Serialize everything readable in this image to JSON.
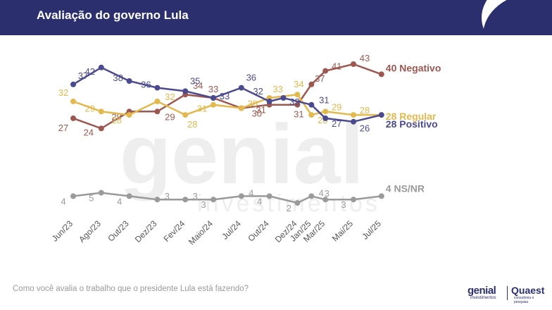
{
  "header": {
    "title": "Avaliação do governo Lula"
  },
  "footnote": "Como você avalia o trabalho que o presidente Lula está fazendo?",
  "logos": {
    "genial": "genial",
    "genial_sub": "investimentos",
    "quaest": "Quaest",
    "quaest_sub": "consultoria e pesquisa"
  },
  "watermark": {
    "line1": "genial",
    "line2": "investimentos"
  },
  "chart_data": {
    "type": "line",
    "categories": [
      "Jun/23",
      "Ago/23",
      "Out/23",
      "Dez/23",
      "Fev/24",
      "Maio/24",
      "Jul/24",
      "Out/24",
      "Dez/24",
      "Jan/25",
      "Mar/25",
      "Mai/25",
      "Jul/25"
    ],
    "x_positions": [
      0,
      1,
      2,
      3,
      4,
      5,
      6,
      7,
      8,
      8.5,
      9,
      10,
      11
    ],
    "series": [
      {
        "name": "Negativo",
        "end_label": "40 Negativo",
        "color": "#9c5850",
        "points": [
          [
            0,
            27
          ],
          [
            1,
            24
          ],
          [
            2,
            29
          ],
          [
            3,
            29
          ],
          [
            4,
            34
          ],
          [
            5,
            33
          ],
          [
            6,
            30
          ],
          [
            7,
            31
          ],
          [
            8,
            31
          ],
          [
            8.5,
            37
          ],
          [
            9,
            41
          ],
          [
            10,
            43
          ],
          [
            11,
            40
          ]
        ],
        "labels": [
          "27",
          "24",
          "29",
          "29",
          "34",
          "33",
          "30",
          "31",
          "31",
          "37",
          "41",
          "43"
        ]
      },
      {
        "name": "Regular",
        "end_label": "28 Regular",
        "color": "#e3b94e",
        "points": [
          [
            0,
            32
          ],
          [
            1,
            29
          ],
          [
            2,
            28
          ],
          [
            3,
            32
          ],
          [
            4,
            28
          ],
          [
            5,
            31
          ],
          [
            6,
            30
          ],
          [
            7,
            33
          ],
          [
            8,
            34
          ],
          [
            8.5,
            28
          ],
          [
            9,
            29
          ],
          [
            10,
            28
          ],
          [
            11,
            28
          ]
        ],
        "labels": [
          "32",
          "29",
          "28",
          "32",
          "28",
          "31",
          "30",
          "33",
          "34",
          "28",
          "29",
          "28"
        ]
      },
      {
        "name": "Positivo",
        "end_label": "28 Positivo",
        "color": "#4b4a8e",
        "points": [
          [
            0,
            37
          ],
          [
            1,
            42
          ],
          [
            2,
            38
          ],
          [
            3,
            36
          ],
          [
            4,
            35
          ],
          [
            5,
            33
          ],
          [
            6,
            36
          ],
          [
            7,
            32
          ],
          [
            7.5,
            33
          ],
          [
            8.5,
            31
          ],
          [
            9,
            27
          ],
          [
            10,
            26
          ],
          [
            11,
            28
          ]
        ],
        "labels": [
          "37",
          "42",
          "38",
          "36",
          "35",
          "33",
          "36",
          "32",
          "33",
          "31",
          "27",
          "26"
        ]
      },
      {
        "name": "NS/NR",
        "end_label": "4 NS/NR",
        "color": "#9a9a9a",
        "points": [
          [
            0,
            4
          ],
          [
            1,
            5
          ],
          [
            2,
            4
          ],
          [
            3,
            3
          ],
          [
            4,
            3
          ],
          [
            5,
            3
          ],
          [
            6,
            4
          ],
          [
            7,
            4
          ],
          [
            8,
            2
          ],
          [
            8.5,
            4
          ],
          [
            9,
            3
          ],
          [
            10,
            3
          ],
          [
            11,
            4
          ]
        ],
        "labels": [
          "4",
          "5",
          "4",
          "3",
          "3",
          "3",
          "4",
          "4",
          "2",
          "4",
          "3",
          "3"
        ]
      }
    ]
  }
}
